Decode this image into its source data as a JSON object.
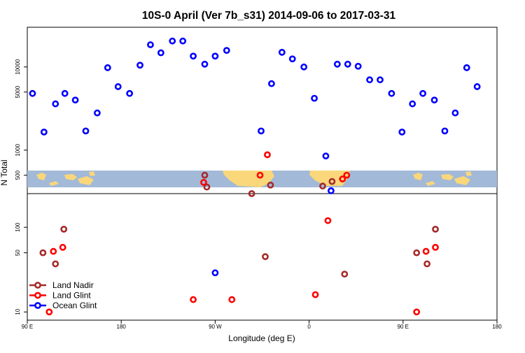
{
  "chart_data": {
    "type": "scatter",
    "title": "10S-0 April (Ver 7b_s31)   2014-09-06 to 2017-03-31",
    "xlabel": "Longitude (deg E)",
    "ylabel": "N Total",
    "x_axis": {
      "min": 90,
      "max": 540,
      "ticks": [
        90,
        180,
        270,
        360,
        450,
        540
      ],
      "tick_labels": [
        "90 E",
        "180",
        "90 W",
        "0",
        "90 E",
        "180"
      ]
    },
    "y_axis": {
      "scale": "log",
      "tick_values": [
        10,
        50,
        100,
        500,
        1000,
        5000,
        10000
      ],
      "tick_labels": [
        "10",
        "50",
        "100",
        "500",
        "1000",
        "5000",
        "10000"
      ],
      "upper_range": [
        300,
        30000
      ],
      "lower_range": [
        8,
        250
      ]
    },
    "legend": {
      "position": "bottom-left",
      "entries": [
        "Land Nadir",
        "Land Glint",
        "Ocean Glint"
      ]
    },
    "series": [
      {
        "name": "Land Nadir",
        "color": "#a52a2a",
        "points": [
          [
            105,
            50
          ],
          [
            117,
            37
          ],
          [
            125,
            95
          ],
          [
            260,
            500
          ],
          [
            262,
            360
          ],
          [
            305,
            300
          ],
          [
            318,
            45
          ],
          [
            323,
            380
          ],
          [
            373,
            370
          ],
          [
            382,
            420
          ],
          [
            394,
            28
          ],
          [
            463,
            50
          ],
          [
            473,
            37
          ],
          [
            481,
            95
          ]
        ]
      },
      {
        "name": "Land Glint",
        "color": "#ff0000",
        "points": [
          [
            111,
            10
          ],
          [
            115,
            52
          ],
          [
            124,
            58
          ],
          [
            249,
            14
          ],
          [
            259,
            410
          ],
          [
            286,
            14
          ],
          [
            313,
            500
          ],
          [
            320,
            880
          ],
          [
            366,
            16
          ],
          [
            378,
            120
          ],
          [
            392,
            450
          ],
          [
            396,
            500
          ],
          [
            463,
            10
          ],
          [
            472,
            52
          ],
          [
            481,
            58
          ]
        ]
      },
      {
        "name": "Ocean Glint",
        "color": "#0000ff",
        "points": [
          [
            95,
            4800
          ],
          [
            106,
            1650
          ],
          [
            117,
            3600
          ],
          [
            126,
            4800
          ],
          [
            136,
            4000
          ],
          [
            146,
            1700
          ],
          [
            157,
            2800
          ],
          [
            167,
            9800
          ],
          [
            177,
            5800
          ],
          [
            188,
            4800
          ],
          [
            198,
            10500
          ],
          [
            208,
            18500
          ],
          [
            218,
            14800
          ],
          [
            229,
            20500
          ],
          [
            239,
            20500
          ],
          [
            249,
            13500
          ],
          [
            260,
            10800
          ],
          [
            270,
            13500
          ],
          [
            281,
            15800
          ],
          [
            270,
            29
          ],
          [
            314,
            1700
          ],
          [
            324,
            6300
          ],
          [
            334,
            15000
          ],
          [
            344,
            12500
          ],
          [
            355,
            10000
          ],
          [
            365,
            4200
          ],
          [
            376,
            850
          ],
          [
            381,
            325
          ],
          [
            387,
            10800
          ],
          [
            397,
            10800
          ],
          [
            407,
            10200
          ],
          [
            418,
            7000
          ],
          [
            428,
            7000
          ],
          [
            439,
            4800
          ],
          [
            449,
            1650
          ],
          [
            459,
            3600
          ],
          [
            469,
            4800
          ],
          [
            480,
            4000
          ],
          [
            490,
            1700
          ],
          [
            500,
            2800
          ],
          [
            511,
            9800
          ],
          [
            521,
            5800
          ]
        ]
      }
    ]
  }
}
